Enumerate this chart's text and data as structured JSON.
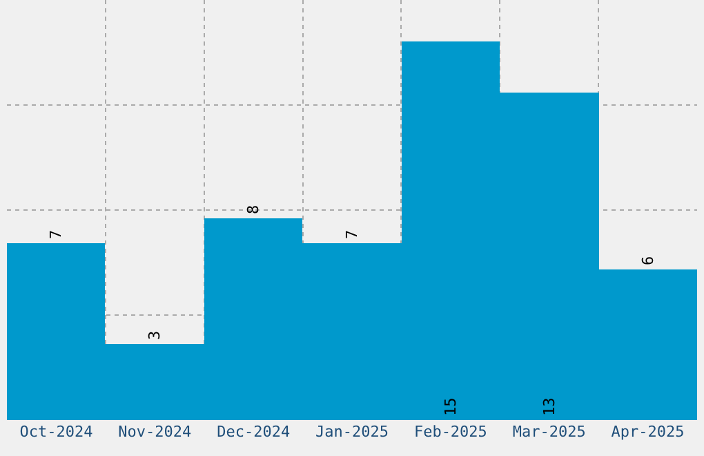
{
  "chart_data": {
    "type": "bar",
    "categories": [
      "Oct-2024",
      "Nov-2024",
      "Dec-2024",
      "Jan-2025",
      "Feb-2025",
      "Mar-2025",
      "Apr-2025"
    ],
    "values": [
      7,
      3,
      8,
      7,
      15,
      13,
      6
    ],
    "color": "#0099cc",
    "data_labels": true,
    "ylim": [
      0,
      16.67
    ],
    "yticks": [
      {
        "value": 4.17,
        "label": null
      },
      {
        "value": 8.33,
        "label": null
      },
      {
        "value": 12.5,
        "label": null
      }
    ],
    "tick_labels": "x",
    "grid": true
  }
}
